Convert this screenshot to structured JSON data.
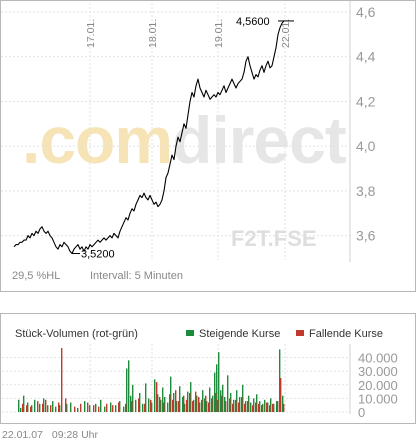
{
  "chart_data": [
    {
      "type": "line",
      "title": "",
      "watermark": {
        "part1": ".com",
        "part2": "direct"
      },
      "symbol": "F2T.FSE",
      "stat_hl": "29,5 %HL",
      "interval": "Intervall: 5 Minuten",
      "ylim": [
        3.5,
        4.6
      ],
      "y_ticks": [
        "3,6",
        "3,8",
        "4,0",
        "4,2",
        "4,4",
        "4,6"
      ],
      "y_tick_values": [
        3.6,
        3.8,
        4.0,
        4.2,
        4.4,
        4.6
      ],
      "x_ticks": [
        "17.01.",
        "18.01.",
        "19.01.",
        "22.01."
      ],
      "grid": true,
      "annotations": [
        {
          "label": "4,5600",
          "value": 4.56,
          "kind": "max"
        },
        {
          "label": "3,5200",
          "value": 3.52,
          "kind": "min"
        }
      ],
      "series": [
        {
          "x": [
            0,
            2,
            4,
            6,
            8,
            10,
            12,
            14,
            16,
            18,
            20,
            22,
            24,
            26,
            28,
            30,
            32,
            34,
            36,
            38,
            40,
            42,
            44,
            46,
            48,
            50,
            52,
            54,
            56,
            58,
            60,
            62,
            64,
            66,
            68,
            70,
            72,
            74,
            76,
            78,
            80,
            82,
            84,
            86,
            88,
            90,
            92,
            94,
            96,
            98,
            100,
            102,
            104,
            106,
            108,
            110,
            112,
            114,
            116,
            118,
            120,
            122,
            124,
            126,
            128,
            130,
            132,
            134,
            136,
            138,
            140,
            142,
            144,
            146,
            148,
            150,
            152,
            154,
            156,
            158,
            160,
            162,
            164,
            166,
            168,
            170,
            172,
            174,
            176,
            178,
            180,
            182,
            184,
            186,
            188,
            190,
            192,
            194,
            196,
            198,
            200,
            202,
            204,
            206,
            208,
            210,
            212,
            214,
            216,
            218,
            220,
            222,
            224,
            226,
            228,
            230,
            232,
            234,
            236,
            238,
            240,
            242,
            244,
            246,
            248,
            250,
            252,
            254,
            256,
            258,
            260,
            262,
            264,
            266,
            268,
            270
          ],
          "values": [
            3.55,
            3.56,
            3.56,
            3.57,
            3.57,
            3.58,
            3.58,
            3.6,
            3.59,
            3.61,
            3.6,
            3.62,
            3.61,
            3.63,
            3.64,
            3.62,
            3.61,
            3.62,
            3.6,
            3.59,
            3.57,
            3.55,
            3.54,
            3.56,
            3.55,
            3.57,
            3.56,
            3.55,
            3.53,
            3.52,
            3.54,
            3.55,
            3.56,
            3.54,
            3.55,
            3.53,
            3.55,
            3.54,
            3.56,
            3.55,
            3.56,
            3.57,
            3.58,
            3.57,
            3.58,
            3.59,
            3.58,
            3.59,
            3.6,
            3.59,
            3.61,
            3.6,
            3.59,
            3.62,
            3.64,
            3.66,
            3.68,
            3.67,
            3.7,
            3.72,
            3.71,
            3.74,
            3.76,
            3.78,
            3.77,
            3.79,
            3.77,
            3.76,
            3.78,
            3.76,
            3.74,
            3.75,
            3.73,
            3.74,
            3.76,
            3.8,
            3.86,
            3.88,
            3.92,
            3.96,
            3.94,
            4.0,
            4.04,
            4.02,
            4.06,
            4.1,
            4.08,
            4.14,
            4.2,
            4.24,
            4.22,
            4.27,
            4.3,
            4.26,
            4.24,
            4.22,
            4.25,
            4.23,
            4.21,
            4.22,
            4.23,
            4.22,
            4.24,
            4.23,
            4.25,
            4.27,
            4.24,
            4.26,
            4.28,
            4.3,
            4.28,
            4.26,
            4.28,
            4.29,
            4.3,
            4.33,
            4.38,
            4.4,
            4.36,
            4.33,
            4.3,
            4.32,
            4.31,
            4.34,
            4.36,
            4.33,
            4.36,
            4.38,
            4.35,
            4.36,
            4.4,
            4.44,
            4.5,
            4.53,
            4.55,
            4.56
          ]
        }
      ]
    },
    {
      "type": "bar",
      "title": "Stück-Volumen (rot-grün)",
      "legend": [
        {
          "label": "Steigende Kurse",
          "color": "#1e8a3c"
        },
        {
          "label": "Fallende Kurse",
          "color": "#c0392b"
        }
      ],
      "ylim": [
        0,
        50000
      ],
      "y_ticks": [
        "40.000",
        "30.000",
        "20.000",
        "10.000",
        "0"
      ],
      "y_tick_values": [
        40000,
        30000,
        20000,
        10000,
        0
      ],
      "grid": true,
      "bars_up": [
        [
          4,
          9000
        ],
        [
          6,
          3000
        ],
        [
          9,
          12000
        ],
        [
          13,
          7000
        ],
        [
          17,
          5000
        ],
        [
          20,
          9000
        ],
        [
          25,
          6000
        ],
        [
          29,
          10000
        ],
        [
          33,
          5000
        ],
        [
          38,
          8000
        ],
        [
          41,
          4000
        ],
        [
          45,
          5000
        ],
        [
          52,
          6000
        ],
        [
          56,
          7000
        ],
        [
          63,
          3000
        ],
        [
          70,
          8000
        ],
        [
          75,
          5000
        ],
        [
          81,
          6000
        ],
        [
          86,
          9000
        ],
        [
          90,
          4000
        ],
        [
          96,
          7000
        ],
        [
          101,
          5000
        ],
        [
          105,
          8000
        ],
        [
          109,
          4000
        ],
        [
          112,
          32000
        ],
        [
          114,
          38000
        ],
        [
          116,
          12000
        ],
        [
          118,
          20000
        ],
        [
          121,
          9000
        ],
        [
          125,
          14000
        ],
        [
          128,
          6000
        ],
        [
          131,
          21000
        ],
        [
          134,
          10000
        ],
        [
          137,
          7000
        ],
        [
          140,
          24000
        ],
        [
          143,
          13000
        ],
        [
          146,
          9000
        ],
        [
          148,
          18000
        ],
        [
          150,
          11000
        ],
        [
          153,
          7000
        ],
        [
          156,
          26000
        ],
        [
          159,
          14000
        ],
        [
          162,
          8000
        ],
        [
          165,
          19000
        ],
        [
          168,
          11000
        ],
        [
          170,
          6000
        ],
        [
          173,
          15000
        ],
        [
          176,
          22000
        ],
        [
          179,
          9000
        ],
        [
          182,
          12000
        ],
        [
          185,
          7000
        ],
        [
          188,
          16000
        ],
        [
          190,
          10000
        ],
        [
          192,
          8000
        ],
        [
          195,
          18000
        ],
        [
          198,
          12000
        ],
        [
          200,
          29000
        ],
        [
          202,
          35000
        ],
        [
          204,
          44000
        ],
        [
          206,
          16000
        ],
        [
          208,
          20000
        ],
        [
          210,
          11000
        ],
        [
          213,
          27000
        ],
        [
          216,
          14000
        ],
        [
          219,
          9000
        ],
        [
          222,
          16000
        ],
        [
          225,
          11000
        ],
        [
          228,
          20000
        ],
        [
          231,
          8000
        ],
        [
          234,
          12000
        ],
        [
          236,
          7000
        ],
        [
          239,
          10000
        ],
        [
          242,
          13000
        ],
        [
          245,
          8000
        ],
        [
          248,
          6000
        ],
        [
          250,
          9000
        ],
        [
          253,
          7000
        ],
        [
          256,
          10000
        ],
        [
          259,
          6000
        ],
        [
          262,
          8000
        ],
        [
          265,
          46000
        ],
        [
          268,
          12000
        ]
      ],
      "bars_down": [
        [
          8,
          6000
        ],
        [
          12,
          5000
        ],
        [
          16,
          4000
        ],
        [
          23,
          8000
        ],
        [
          28,
          6000
        ],
        [
          31,
          9000
        ],
        [
          36,
          5000
        ],
        [
          44,
          7000
        ],
        [
          47,
          47000
        ],
        [
          51,
          10000
        ],
        [
          60,
          4000
        ],
        [
          66,
          6000
        ],
        [
          73,
          7000
        ],
        [
          79,
          5000
        ],
        [
          84,
          4000
        ],
        [
          92,
          6000
        ],
        [
          98,
          5000
        ],
        [
          104,
          7000
        ],
        [
          111,
          6000
        ],
        [
          117,
          8000
        ],
        [
          124,
          10000
        ],
        [
          130,
          6000
        ],
        [
          136,
          9000
        ],
        [
          142,
          22000
        ],
        [
          145,
          11000
        ],
        [
          149,
          7000
        ],
        [
          155,
          13000
        ],
        [
          158,
          9000
        ],
        [
          161,
          16000
        ],
        [
          164,
          8000
        ],
        [
          169,
          12000
        ],
        [
          172,
          9000
        ],
        [
          175,
          14000
        ],
        [
          178,
          8000
        ],
        [
          181,
          15000
        ],
        [
          184,
          11000
        ],
        [
          187,
          9000
        ],
        [
          191,
          12000
        ],
        [
          194,
          7000
        ],
        [
          197,
          10000
        ],
        [
          201,
          14000
        ],
        [
          203,
          9000
        ],
        [
          207,
          12000
        ],
        [
          211,
          8000
        ],
        [
          215,
          10000
        ],
        [
          218,
          6000
        ],
        [
          221,
          9000
        ],
        [
          224,
          7000
        ],
        [
          227,
          11000
        ],
        [
          230,
          6000
        ],
        [
          233,
          8000
        ],
        [
          238,
          5000
        ],
        [
          241,
          7000
        ],
        [
          244,
          6000
        ],
        [
          247,
          5000
        ],
        [
          252,
          7000
        ],
        [
          255,
          5000
        ],
        [
          258,
          6000
        ],
        [
          263,
          8000
        ],
        [
          266,
          25000
        ],
        [
          269,
          6000
        ]
      ]
    }
  ],
  "footer": {
    "date": "22.01.07",
    "time": "09:28 Uhr"
  }
}
